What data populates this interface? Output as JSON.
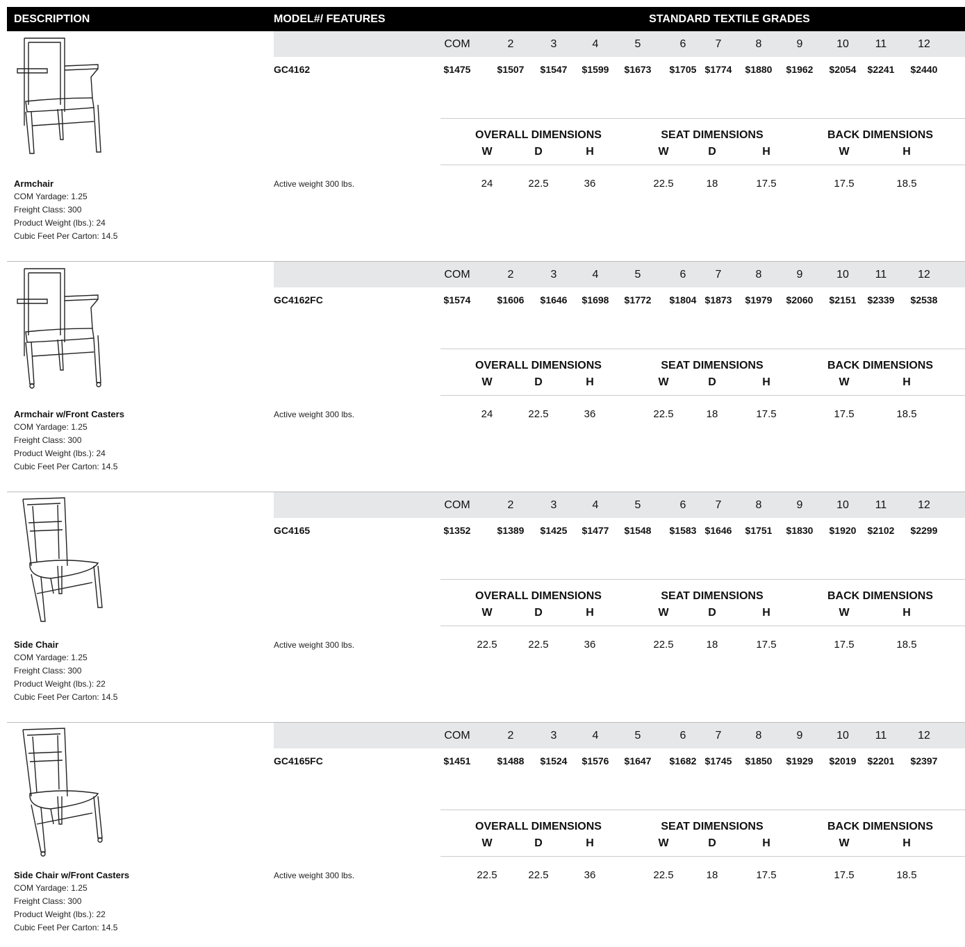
{
  "header": {
    "description": "DESCRIPTION",
    "model": "MODEL#/ FEATURES",
    "grades_title": "STANDARD TEXTILE GRADES"
  },
  "grade_labels": [
    "COM",
    "2",
    "3",
    "4",
    "5",
    "6",
    "7",
    "8",
    "9",
    "10",
    "11",
    "12"
  ],
  "dimension_groups": [
    {
      "title": "OVERALL DIMENSIONS",
      "columns": [
        "W",
        "D",
        "H"
      ]
    },
    {
      "title": "SEAT DIMENSIONS",
      "columns": [
        "W",
        "D",
        "H"
      ]
    },
    {
      "title": "BACK DIMENSIONS",
      "columns": [
        "W",
        "H"
      ]
    }
  ],
  "products": [
    {
      "name": "Armchair",
      "details": [
        "COM Yardage: 1.25",
        "Freight Class: 300",
        "Product Weight (lbs.): 24",
        "Cubic Feet Per Carton: 14.5"
      ],
      "model": "GC4162",
      "feature": "Active weight 300 lbs.",
      "prices": [
        "$1475",
        "$1507",
        "$1547",
        "$1599",
        "$1673",
        "$1705",
        "$1774",
        "$1880",
        "$1962",
        "$2054",
        "$2241",
        "$2440"
      ],
      "dimensions": [
        "24",
        "22.5",
        "36",
        "22.5",
        "18",
        "17.5",
        "17.5",
        "18.5"
      ]
    },
    {
      "name": "Armchair w/Front Casters",
      "details": [
        "COM Yardage: 1.25",
        "Freight Class: 300",
        "Product Weight (lbs.): 24",
        "Cubic Feet Per Carton: 14.5"
      ],
      "model": "GC4162FC",
      "feature": "Active weight 300 lbs.",
      "prices": [
        "$1574",
        "$1606",
        "$1646",
        "$1698",
        "$1772",
        "$1804",
        "$1873",
        "$1979",
        "$2060",
        "$2151",
        "$2339",
        "$2538"
      ],
      "dimensions": [
        "24",
        "22.5",
        "36",
        "22.5",
        "18",
        "17.5",
        "17.5",
        "18.5"
      ]
    },
    {
      "name": "Side Chair",
      "details": [
        "COM Yardage: 1.25",
        "Freight Class: 300",
        "Product Weight (lbs.): 22",
        "Cubic Feet Per Carton: 14.5"
      ],
      "model": "GC4165",
      "feature": "Active weight 300 lbs.",
      "prices": [
        "$1352",
        "$1389",
        "$1425",
        "$1477",
        "$1548",
        "$1583",
        "$1646",
        "$1751",
        "$1830",
        "$1920",
        "$2102",
        "$2299"
      ],
      "dimensions": [
        "22.5",
        "22.5",
        "36",
        "22.5",
        "18",
        "17.5",
        "17.5",
        "18.5"
      ]
    },
    {
      "name": "Side Chair w/Front Casters",
      "details": [
        "COM Yardage: 1.25",
        "Freight Class: 300",
        "Product Weight (lbs.): 22",
        "Cubic Feet Per Carton: 14.5"
      ],
      "model": "GC4165FC",
      "feature": "Active weight 300 lbs.",
      "prices": [
        "$1451",
        "$1488",
        "$1524",
        "$1576",
        "$1647",
        "$1682",
        "$1745",
        "$1850",
        "$1929",
        "$2019",
        "$2201",
        "$2397"
      ],
      "dimensions": [
        "22.5",
        "22.5",
        "36",
        "22.5",
        "18",
        "17.5",
        "17.5",
        "18.5"
      ]
    }
  ]
}
